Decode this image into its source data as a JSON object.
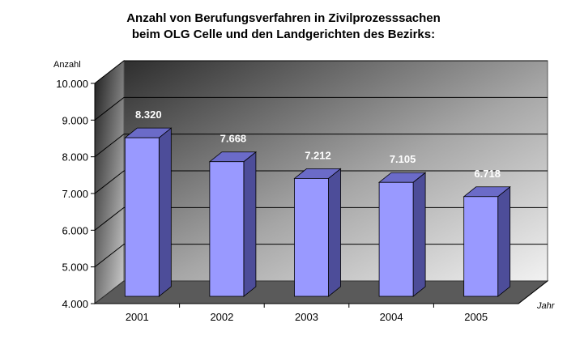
{
  "chart_data": {
    "type": "bar",
    "title_lines": [
      "Anzahl von Berufungsverfahren in Zivilprozesssachen",
      "beim OLG Celle und den Landgerichten des Bezirks:"
    ],
    "ylabel": "Anzahl",
    "xlabel": "Jahr",
    "categories": [
      "2001",
      "2002",
      "2003",
      "2004",
      "2005"
    ],
    "values": [
      8320,
      7668,
      7212,
      7105,
      6718
    ],
    "value_labels": [
      "8.320",
      "7.668",
      "7.212",
      "7.105",
      "6.718"
    ],
    "y_ticks": [
      {
        "value": 4000,
        "label": "4.000"
      },
      {
        "value": 5000,
        "label": "5.000"
      },
      {
        "value": 6000,
        "label": "6.000"
      },
      {
        "value": 7000,
        "label": "7.000"
      },
      {
        "value": 8000,
        "label": "8.000"
      },
      {
        "value": 9000,
        "label": "9.000"
      },
      {
        "value": 10000,
        "label": "10.000"
      }
    ],
    "ylim": [
      4000,
      10000
    ],
    "grid": true,
    "legend": "none",
    "colors": {
      "bar_front": "#9999ff",
      "bar_side": "#4d4d99",
      "bar_top": "#6b6bc8",
      "floor": "#5a5a5a",
      "value_label": "#ffffff"
    }
  }
}
